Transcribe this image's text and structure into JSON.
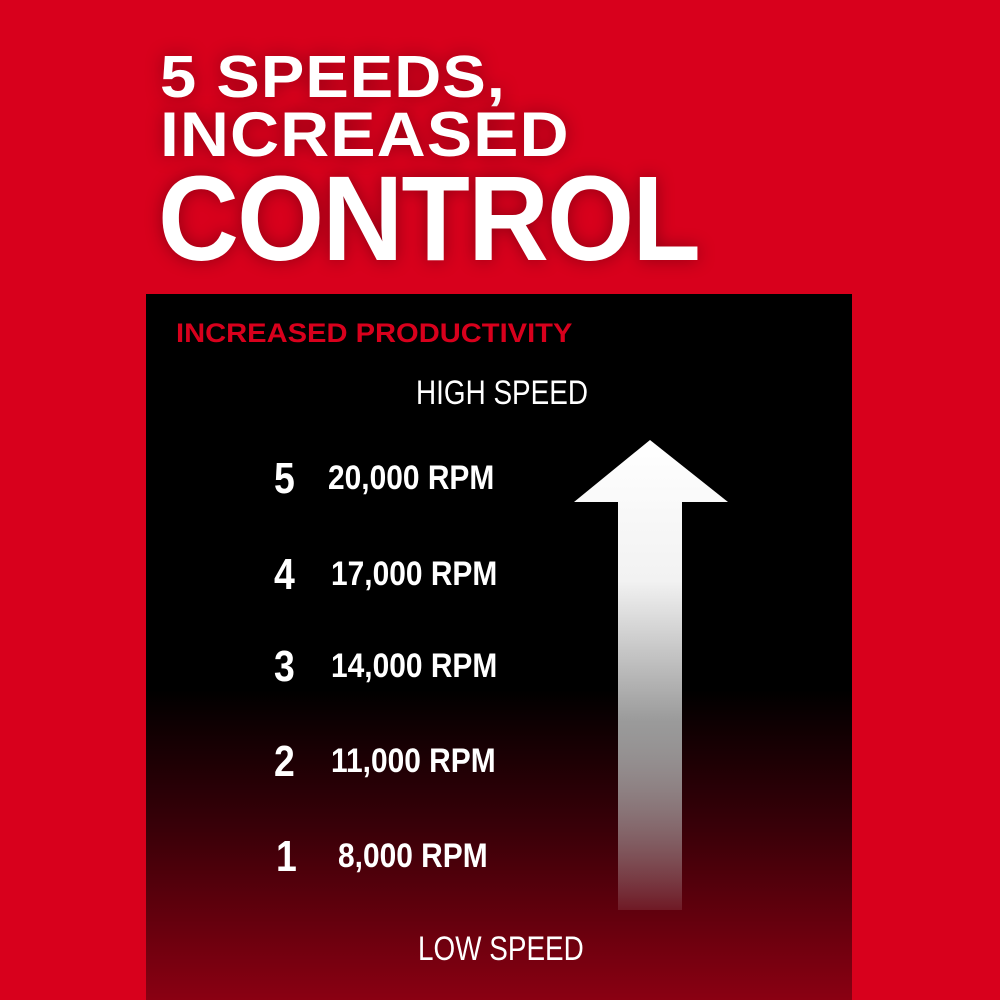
{
  "headline": {
    "line1": "5 SPEEDS,",
    "line2": "INCREASED",
    "line3": "CONTROL"
  },
  "panel": {
    "subtitle": "INCREASED PRODUCTIVITY",
    "top_label": "HIGH SPEED",
    "bottom_label": "LOW SPEED",
    "speeds": [
      {
        "level": "5",
        "rpm": "20,000 RPM"
      },
      {
        "level": "4",
        "rpm": "17,000 RPM"
      },
      {
        "level": "3",
        "rpm": "14,000 RPM"
      },
      {
        "level": "2",
        "rpm": "11,000 RPM"
      },
      {
        "level": "1",
        "rpm": "8,000 RPM"
      }
    ]
  },
  "colors": {
    "brand_red": "#d8001c",
    "panel": "#000000",
    "text": "#ffffff"
  }
}
